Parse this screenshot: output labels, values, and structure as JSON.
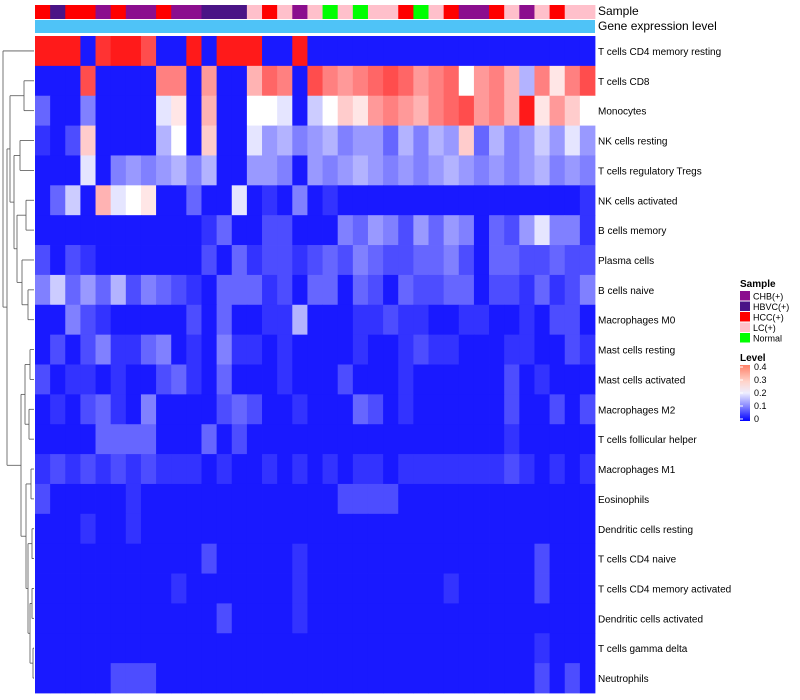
{
  "chart_data": {
    "type": "heatmap",
    "title": "",
    "annotation_rows": [
      "Sample",
      "Gene expression level"
    ],
    "rows": [
      "T cells CD4 memory resting",
      "T cells CD8",
      "Monocytes",
      "NK cells resting",
      "T cells regulatory  Tregs",
      "NK cells activated",
      "B cells memory",
      "Plasma cells",
      "B cells naive",
      "Macrophages M0",
      "Mast cells resting",
      "Mast cells activated",
      "Macrophages M2",
      "T cells follicular helper",
      "Macrophages M1",
      "Eosinophils",
      "Dendritic cells resting",
      "T cells CD4 naive",
      "T cells CD4 memory activated",
      "Dendritic cells activated",
      "T cells gamma delta",
      "Neutrophils"
    ],
    "sample_groups": [
      "HCC(+)",
      "HBVC(+)",
      "HCC(+)",
      "HCC(+)",
      "CHB(+)",
      "HCC(+)",
      "CHB(+)",
      "CHB(+)",
      "HCC(+)",
      "CHB(+)",
      "CHB(+)",
      "HBVC(+)",
      "HBVC(+)",
      "HBVC(+)",
      "LC(+)",
      "HCC(+)",
      "LC(+)",
      "CHB(+)",
      "LC(+)",
      "Normal",
      "LC(+)",
      "Normal",
      "LC(+)",
      "LC(+)",
      "HCC(+)",
      "Normal",
      "LC(+)",
      "HCC(+)",
      "CHB(+)",
      "CHB(+)",
      "HCC(+)",
      "LC(+)",
      "CHB(+)",
      "LC(+)",
      "HCC(+)",
      "LC(+)",
      "LC(+)"
    ],
    "expression_bar_color": "#4fc3f7",
    "values": [
      [
        0.38,
        0.38,
        0.38,
        0.02,
        0.36,
        0.38,
        0.38,
        0.34,
        0.02,
        0.02,
        0.38,
        0.02,
        0.38,
        0.38,
        0.38,
        0.02,
        0.02,
        0.38,
        0.02,
        0.02,
        0.02,
        0.02,
        0.02,
        0.02,
        0.02,
        0.02,
        0.02,
        0.02,
        0.02,
        0.02,
        0.02,
        0.02,
        0.02,
        0.02,
        0.02,
        0.02,
        0.02
      ],
      [
        0.02,
        0.02,
        0.02,
        0.34,
        0.02,
        0.02,
        0.02,
        0.02,
        0.3,
        0.3,
        0.02,
        0.28,
        0.02,
        0.02,
        0.26,
        0.32,
        0.3,
        0.02,
        0.34,
        0.3,
        0.28,
        0.3,
        0.32,
        0.34,
        0.32,
        0.28,
        0.3,
        0.32,
        0.2,
        0.28,
        0.3,
        0.26,
        0.14,
        0.3,
        0.22,
        0.3,
        0.34
      ],
      [
        0.08,
        0.02,
        0.02,
        0.1,
        0.02,
        0.02,
        0.02,
        0.02,
        0.18,
        0.22,
        0.02,
        0.26,
        0.02,
        0.02,
        0.2,
        0.2,
        0.18,
        0.02,
        0.16,
        0.2,
        0.24,
        0.22,
        0.28,
        0.3,
        0.28,
        0.26,
        0.3,
        0.32,
        0.34,
        0.28,
        0.3,
        0.26,
        0.38,
        0.22,
        0.28,
        0.24,
        0.2
      ],
      [
        0.04,
        0.02,
        0.06,
        0.24,
        0.02,
        0.02,
        0.02,
        0.02,
        0.14,
        0.2,
        0.02,
        0.24,
        0.02,
        0.02,
        0.18,
        0.12,
        0.14,
        0.1,
        0.12,
        0.14,
        0.1,
        0.12,
        0.12,
        0.08,
        0.14,
        0.1,
        0.14,
        0.12,
        0.24,
        0.08,
        0.14,
        0.1,
        0.12,
        0.16,
        0.12,
        0.18,
        0.12
      ],
      [
        0.02,
        0.02,
        0.02,
        0.18,
        0.02,
        0.1,
        0.12,
        0.1,
        0.12,
        0.14,
        0.1,
        0.14,
        0.02,
        0.02,
        0.12,
        0.12,
        0.1,
        0.02,
        0.12,
        0.1,
        0.12,
        0.14,
        0.12,
        0.1,
        0.12,
        0.1,
        0.12,
        0.14,
        0.12,
        0.1,
        0.12,
        0.1,
        0.12,
        0.14,
        0.1,
        0.12,
        0.1
      ],
      [
        0.02,
        0.08,
        0.16,
        0.02,
        0.26,
        0.18,
        0.2,
        0.22,
        0.02,
        0.02,
        0.08,
        0.02,
        0.02,
        0.18,
        0.02,
        0.04,
        0.02,
        0.1,
        0.02,
        0.04,
        0.02,
        0.02,
        0.02,
        0.02,
        0.02,
        0.02,
        0.02,
        0.02,
        0.02,
        0.02,
        0.02,
        0.02,
        0.02,
        0.02,
        0.02,
        0.02,
        0.04
      ],
      [
        0.02,
        0.02,
        0.02,
        0.02,
        0.02,
        0.02,
        0.02,
        0.02,
        0.02,
        0.02,
        0.02,
        0.04,
        0.08,
        0.02,
        0.02,
        0.06,
        0.06,
        0.02,
        0.02,
        0.02,
        0.1,
        0.08,
        0.12,
        0.1,
        0.06,
        0.12,
        0.08,
        0.12,
        0.1,
        0.02,
        0.08,
        0.06,
        0.12,
        0.18,
        0.1,
        0.1,
        0.04
      ],
      [
        0.06,
        0.02,
        0.06,
        0.04,
        0.02,
        0.02,
        0.02,
        0.02,
        0.02,
        0.02,
        0.02,
        0.06,
        0.02,
        0.08,
        0.04,
        0.06,
        0.06,
        0.04,
        0.06,
        0.08,
        0.06,
        0.1,
        0.08,
        0.06,
        0.06,
        0.08,
        0.08,
        0.1,
        0.06,
        0.02,
        0.08,
        0.08,
        0.06,
        0.06,
        0.08,
        0.06,
        0.06
      ],
      [
        0.1,
        0.16,
        0.08,
        0.12,
        0.08,
        0.14,
        0.06,
        0.1,
        0.08,
        0.06,
        0.04,
        0.02,
        0.08,
        0.08,
        0.08,
        0.04,
        0.06,
        0.02,
        0.08,
        0.08,
        0.02,
        0.08,
        0.06,
        0.02,
        0.08,
        0.06,
        0.06,
        0.08,
        0.08,
        0.02,
        0.06,
        0.06,
        0.04,
        0.08,
        0.04,
        0.06,
        0.1
      ],
      [
        0.02,
        0.02,
        0.1,
        0.06,
        0.04,
        0.02,
        0.02,
        0.02,
        0.02,
        0.02,
        0.06,
        0.02,
        0.08,
        0.02,
        0.02,
        0.04,
        0.04,
        0.14,
        0.02,
        0.02,
        0.02,
        0.04,
        0.04,
        0.06,
        0.04,
        0.04,
        0.02,
        0.02,
        0.04,
        0.04,
        0.02,
        0.02,
        0.04,
        0.02,
        0.06,
        0.06,
        0.02
      ],
      [
        0.02,
        0.06,
        0.02,
        0.06,
        0.1,
        0.04,
        0.04,
        0.08,
        0.1,
        0.02,
        0.04,
        0.02,
        0.1,
        0.04,
        0.04,
        0.02,
        0.04,
        0.02,
        0.02,
        0.02,
        0.02,
        0.04,
        0.02,
        0.02,
        0.04,
        0.06,
        0.04,
        0.04,
        0.02,
        0.02,
        0.02,
        0.04,
        0.04,
        0.02,
        0.02,
        0.06,
        0.04
      ],
      [
        0.06,
        0.02,
        0.04,
        0.04,
        0.02,
        0.04,
        0.02,
        0.02,
        0.06,
        0.08,
        0.04,
        0.02,
        0.08,
        0.02,
        0.02,
        0.02,
        0.04,
        0.02,
        0.02,
        0.02,
        0.06,
        0.02,
        0.02,
        0.02,
        0.04,
        0.02,
        0.02,
        0.02,
        0.02,
        0.02,
        0.02,
        0.06,
        0.02,
        0.04,
        0.02,
        0.02,
        0.02
      ],
      [
        0.02,
        0.04,
        0.02,
        0.06,
        0.08,
        0.04,
        0.02,
        0.1,
        0.02,
        0.02,
        0.02,
        0.02,
        0.06,
        0.08,
        0.06,
        0.02,
        0.02,
        0.04,
        0.02,
        0.02,
        0.02,
        0.08,
        0.06,
        0.02,
        0.04,
        0.02,
        0.02,
        0.02,
        0.02,
        0.02,
        0.02,
        0.06,
        0.02,
        0.02,
        0.06,
        0.02,
        0.06
      ],
      [
        0.02,
        0.02,
        0.02,
        0.02,
        0.08,
        0.08,
        0.08,
        0.08,
        0.02,
        0.02,
        0.02,
        0.08,
        0.02,
        0.06,
        0.02,
        0.02,
        0.02,
        0.02,
        0.02,
        0.02,
        0.02,
        0.02,
        0.02,
        0.02,
        0.02,
        0.02,
        0.02,
        0.02,
        0.02,
        0.02,
        0.02,
        0.04,
        0.02,
        0.02,
        0.02,
        0.02,
        0.02
      ],
      [
        0.04,
        0.06,
        0.04,
        0.06,
        0.04,
        0.06,
        0.04,
        0.06,
        0.04,
        0.04,
        0.04,
        0.02,
        0.04,
        0.02,
        0.02,
        0.04,
        0.02,
        0.04,
        0.02,
        0.04,
        0.02,
        0.04,
        0.04,
        0.02,
        0.04,
        0.04,
        0.04,
        0.04,
        0.04,
        0.04,
        0.04,
        0.06,
        0.04,
        0.02,
        0.04,
        0.02,
        0.04
      ],
      [
        0.06,
        0.02,
        0.02,
        0.02,
        0.02,
        0.02,
        0.04,
        0.02,
        0.02,
        0.02,
        0.02,
        0.02,
        0.02,
        0.02,
        0.02,
        0.02,
        0.02,
        0.02,
        0.02,
        0.02,
        0.06,
        0.06,
        0.06,
        0.06,
        0.02,
        0.02,
        0.02,
        0.02,
        0.02,
        0.02,
        0.02,
        0.02,
        0.02,
        0.02,
        0.02,
        0.02,
        0.02
      ],
      [
        0.02,
        0.02,
        0.02,
        0.04,
        0.02,
        0.02,
        0.04,
        0.02,
        0.02,
        0.02,
        0.02,
        0.02,
        0.02,
        0.02,
        0.02,
        0.02,
        0.02,
        0.02,
        0.02,
        0.02,
        0.02,
        0.02,
        0.02,
        0.02,
        0.02,
        0.02,
        0.02,
        0.02,
        0.02,
        0.02,
        0.02,
        0.02,
        0.02,
        0.02,
        0.02,
        0.02,
        0.02
      ],
      [
        0.02,
        0.02,
        0.02,
        0.02,
        0.02,
        0.02,
        0.02,
        0.02,
        0.02,
        0.02,
        0.02,
        0.06,
        0.02,
        0.02,
        0.02,
        0.02,
        0.02,
        0.04,
        0.02,
        0.02,
        0.02,
        0.02,
        0.02,
        0.02,
        0.02,
        0.02,
        0.02,
        0.02,
        0.02,
        0.02,
        0.02,
        0.02,
        0.02,
        0.06,
        0.02,
        0.02,
        0.02
      ],
      [
        0.02,
        0.02,
        0.02,
        0.02,
        0.02,
        0.02,
        0.02,
        0.02,
        0.02,
        0.04,
        0.02,
        0.02,
        0.02,
        0.02,
        0.02,
        0.02,
        0.02,
        0.04,
        0.02,
        0.02,
        0.02,
        0.02,
        0.02,
        0.02,
        0.02,
        0.02,
        0.02,
        0.04,
        0.02,
        0.02,
        0.02,
        0.02,
        0.02,
        0.06,
        0.02,
        0.02,
        0.02
      ],
      [
        0.02,
        0.02,
        0.02,
        0.02,
        0.02,
        0.02,
        0.02,
        0.02,
        0.02,
        0.02,
        0.02,
        0.02,
        0.06,
        0.02,
        0.02,
        0.02,
        0.02,
        0.04,
        0.02,
        0.02,
        0.02,
        0.02,
        0.02,
        0.02,
        0.02,
        0.02,
        0.02,
        0.02,
        0.02,
        0.02,
        0.02,
        0.02,
        0.02,
        0.02,
        0.02,
        0.02,
        0.02
      ],
      [
        0.02,
        0.02,
        0.02,
        0.02,
        0.02,
        0.02,
        0.02,
        0.02,
        0.02,
        0.02,
        0.02,
        0.02,
        0.02,
        0.02,
        0.02,
        0.02,
        0.02,
        0.02,
        0.02,
        0.02,
        0.02,
        0.02,
        0.02,
        0.02,
        0.02,
        0.02,
        0.02,
        0.02,
        0.02,
        0.02,
        0.02,
        0.02,
        0.02,
        0.04,
        0.02,
        0.02,
        0.02
      ],
      [
        0.02,
        0.02,
        0.02,
        0.02,
        0.02,
        0.06,
        0.06,
        0.06,
        0.02,
        0.02,
        0.02,
        0.02,
        0.02,
        0.02,
        0.02,
        0.02,
        0.02,
        0.02,
        0.02,
        0.02,
        0.02,
        0.02,
        0.02,
        0.02,
        0.02,
        0.02,
        0.02,
        0.02,
        0.02,
        0.02,
        0.02,
        0.02,
        0.02,
        0.06,
        0.02,
        0.06,
        0.02
      ]
    ],
    "legend_sample": {
      "title": "Sample",
      "entries": [
        {
          "label": "CHB(+)",
          "color": "#8b0e8e"
        },
        {
          "label": "HBVC(+)",
          "color": "#4a1486"
        },
        {
          "label": "HCC(+)",
          "color": "#ff0000"
        },
        {
          "label": "LC(+)",
          "color": "#ffc0cb"
        },
        {
          "label": "Normal",
          "color": "#00ff00"
        }
      ]
    },
    "legend_level": {
      "title": "Level",
      "ticks": [
        "0.4",
        "0.3",
        "0.2",
        "0.1",
        "0"
      ],
      "range": [
        0,
        0.4
      ]
    }
  }
}
